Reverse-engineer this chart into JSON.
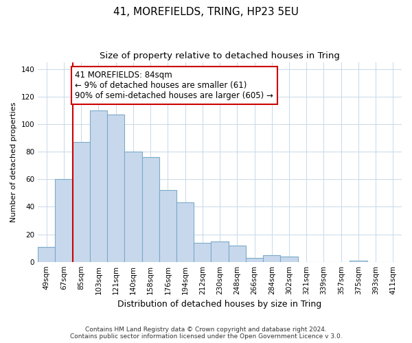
{
  "title": "41, MOREFIELDS, TRING, HP23 5EU",
  "subtitle": "Size of property relative to detached houses in Tring",
  "xlabel": "Distribution of detached houses by size in Tring",
  "ylabel": "Number of detached properties",
  "bar_labels": [
    "49sqm",
    "67sqm",
    "85sqm",
    "103sqm",
    "121sqm",
    "140sqm",
    "158sqm",
    "176sqm",
    "194sqm",
    "212sqm",
    "230sqm",
    "248sqm",
    "266sqm",
    "284sqm",
    "302sqm",
    "321sqm",
    "339sqm",
    "357sqm",
    "375sqm",
    "393sqm",
    "411sqm"
  ],
  "bar_values": [
    11,
    60,
    87,
    110,
    107,
    80,
    76,
    52,
    43,
    14,
    15,
    12,
    3,
    5,
    4,
    0,
    0,
    0,
    1,
    0,
    0
  ],
  "bar_color": "#c8d8ec",
  "bar_edge_color": "#7aaac8",
  "highlight_line_index": 2,
  "highlight_color": "#cc0000",
  "annotation_text": "41 MOREFIELDS: 84sqm\n← 9% of detached houses are smaller (61)\n90% of semi-detached houses are larger (605) →",
  "annotation_box_color": "#ffffff",
  "annotation_box_edge": "#cc0000",
  "ylim": [
    0,
    145
  ],
  "yticks": [
    0,
    20,
    40,
    60,
    80,
    100,
    120,
    140
  ],
  "footer": "Contains HM Land Registry data © Crown copyright and database right 2024.\nContains public sector information licensed under the Open Government Licence v 3.0.",
  "title_fontsize": 11,
  "subtitle_fontsize": 9.5,
  "xlabel_fontsize": 9,
  "ylabel_fontsize": 8,
  "tick_fontsize": 7.5,
  "annotation_fontsize": 8.5,
  "footer_fontsize": 6.5
}
